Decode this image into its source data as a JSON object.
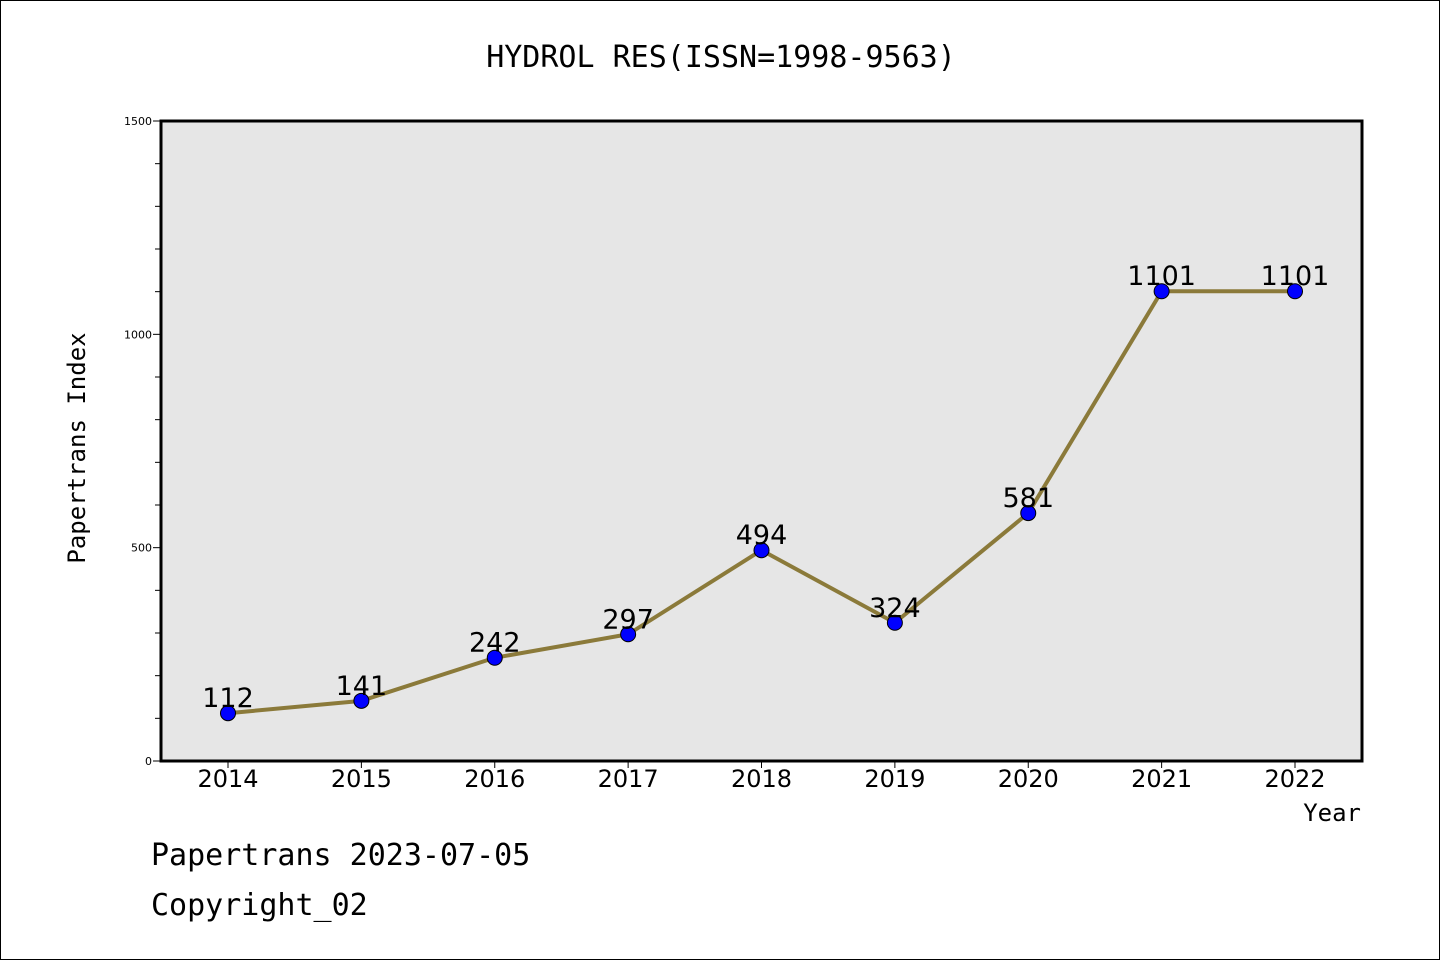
{
  "chart_data": {
    "type": "line",
    "title": "HYDROL RES(ISSN=1998-9563)",
    "xlabel": "Year",
    "ylabel": "Papertrans Index",
    "categories": [
      "2014",
      "2015",
      "2016",
      "2017",
      "2018",
      "2019",
      "2020",
      "2021",
      "2022"
    ],
    "series": [
      {
        "values": [
          112,
          141,
          242,
          297,
          494,
          324,
          581,
          1101,
          1101
        ]
      }
    ],
    "data_labels": [
      "112",
      "141",
      "242",
      "297",
      "494",
      "324",
      "581",
      "1101",
      "1101"
    ],
    "ylim": [
      0,
      1500
    ],
    "yticks": [
      0,
      500,
      1000,
      1500
    ],
    "ytick_labels": [
      "0",
      "500",
      "1000",
      "1500"
    ],
    "grid": false,
    "legend": "none",
    "colors": {
      "line": "#8b7a3a",
      "marker": "#0000ff",
      "plot_background": "#e6e6e6"
    }
  },
  "footer": {
    "line1": "Papertrans 2023-07-05",
    "line2": "Copyright_02"
  }
}
